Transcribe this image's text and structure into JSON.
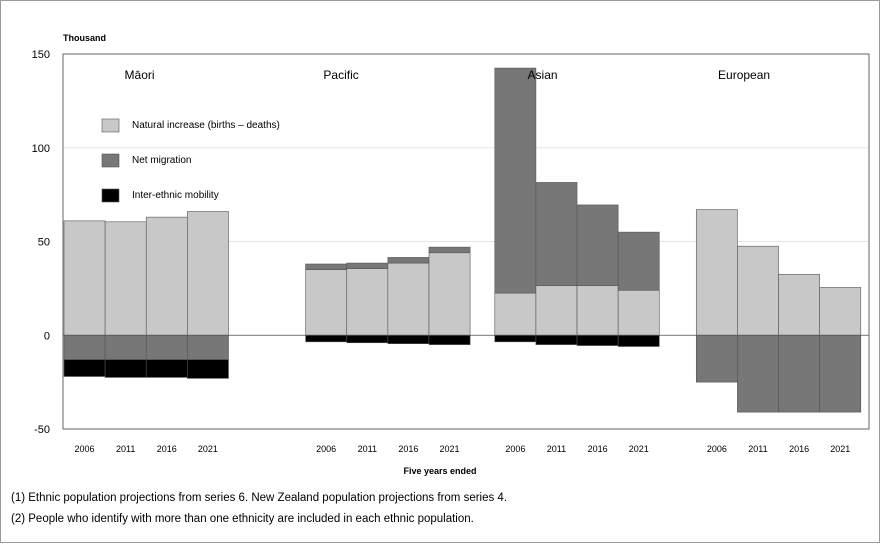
{
  "chart_data": {
    "type": "bar",
    "stacked": true,
    "unit_label": "Thousand",
    "xlabel": "Five years ended",
    "ylim": [
      -50,
      150
    ],
    "yticks": [
      -50,
      0,
      50,
      100,
      150
    ],
    "grid": true,
    "legend_position": "upper-left",
    "colors": {
      "natural": "#c8c8c8",
      "migration": "#777777",
      "mobility": "#000000",
      "gridline": "#e6e6e6",
      "bar_edge": "#555555"
    },
    "legend": [
      {
        "key": "natural",
        "label": "Natural increase (births – deaths)"
      },
      {
        "key": "migration",
        "label": "Net migration"
      },
      {
        "key": "mobility",
        "label": "Inter-ethnic mobility"
      }
    ],
    "groups": [
      {
        "name": "Māori",
        "categories": [
          "2006",
          "2011",
          "2016",
          "2021"
        ],
        "natural": [
          61,
          60.5,
          63,
          66
        ],
        "migration": [
          -13,
          -13,
          -13,
          -13
        ],
        "mobility": [
          -9,
          -9.5,
          -9.5,
          -10
        ]
      },
      {
        "name": "Pacific",
        "categories": [
          "2006",
          "2011",
          "2016",
          "2021"
        ],
        "natural": [
          35,
          35.5,
          38.5,
          44
        ],
        "migration": [
          3,
          3,
          3,
          3
        ],
        "mobility": [
          -3.5,
          -4,
          -4.5,
          -5
        ]
      },
      {
        "name": "Asian",
        "categories": [
          "2006",
          "2011",
          "2016",
          "2021"
        ],
        "natural": [
          22.5,
          26.5,
          26.5,
          24
        ],
        "migration": [
          120,
          55,
          43,
          31
        ],
        "mobility": [
          -3.5,
          -5,
          -5.5,
          -6
        ]
      },
      {
        "name": "European",
        "categories": [
          "2006",
          "2011",
          "2016",
          "2021"
        ],
        "natural": [
          67,
          47.5,
          32.5,
          25.5
        ],
        "migration": [
          -25,
          -41,
          -41,
          -41
        ],
        "mobility": [
          0,
          0,
          0,
          0
        ]
      }
    ]
  },
  "notes": [
    "(1) Ethnic population projections from series 6. New Zealand population projections from series 4.",
    "(2) People who identify with more than one ethnicity are included in each ethnic population."
  ]
}
